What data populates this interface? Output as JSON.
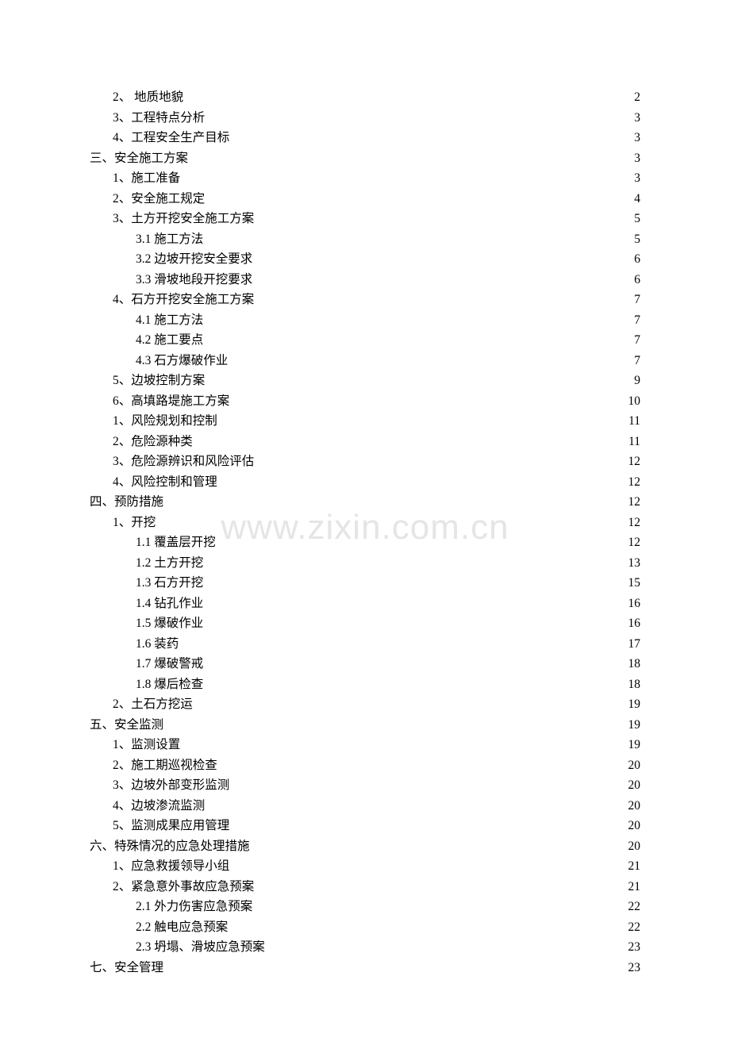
{
  "watermark": "www.zixin.com.cn",
  "colors": {
    "text": "#000000",
    "background": "#ffffff",
    "watermark": "#e5e5e5"
  },
  "typography": {
    "font_family": "SimSun",
    "font_size_pt": 12,
    "line_height": 25.5
  },
  "toc": [
    {
      "label": "2、   地质地貌",
      "page": "2",
      "indent": 1
    },
    {
      "label": "3、工程特点分析",
      "page": "3",
      "indent": 1
    },
    {
      "label": "4、工程安全生产目标",
      "page": "3",
      "indent": 1
    },
    {
      "label": "三、安全施工方案",
      "page": "3",
      "indent": 0
    },
    {
      "label": "1、施工准备",
      "page": "3",
      "indent": 1
    },
    {
      "label": "2、安全施工规定",
      "page": "4",
      "indent": 1
    },
    {
      "label": "3、土方开挖安全施工方案",
      "page": "5",
      "indent": 1
    },
    {
      "label": "3.1 施工方法",
      "page": "5",
      "indent": 2
    },
    {
      "label": "3.2 边坡开挖安全要求",
      "page": "6",
      "indent": 2
    },
    {
      "label": "3.3 滑坡地段开挖要求",
      "page": "6",
      "indent": 2
    },
    {
      "label": "4、石方开挖安全施工方案",
      "page": "7",
      "indent": 1
    },
    {
      "label": "4.1 施工方法",
      "page": "7",
      "indent": 2
    },
    {
      "label": "4.2 施工要点",
      "page": "7",
      "indent": 2
    },
    {
      "label": "4.3 石方爆破作业",
      "page": "7",
      "indent": 2
    },
    {
      "label": "5、边坡控制方案",
      "page": "9",
      "indent": 1
    },
    {
      "label": "6、高填路堤施工方案",
      "page": "10",
      "indent": 1
    },
    {
      "label": "1、风险规划和控制",
      "page": "11",
      "indent": 1
    },
    {
      "label": "2、危险源种类",
      "page": "11",
      "indent": 1
    },
    {
      "label": "3、危险源辨识和风险评估",
      "page": "12",
      "indent": 1
    },
    {
      "label": "4、风险控制和管理",
      "page": "12",
      "indent": 1
    },
    {
      "label": "四、预防措施",
      "page": "12",
      "indent": 0
    },
    {
      "label": "1、开挖",
      "page": "12",
      "indent": 1
    },
    {
      "label": "1.1 覆盖层开挖",
      "page": "12",
      "indent": 2
    },
    {
      "label": "1.2 土方开挖",
      "page": "13",
      "indent": 2
    },
    {
      "label": "1.3 石方开挖",
      "page": "15",
      "indent": 2
    },
    {
      "label": "1.4 钻孔作业",
      "page": "16",
      "indent": 2
    },
    {
      "label": "1.5 爆破作业",
      "page": "16",
      "indent": 2
    },
    {
      "label": "1.6 装药",
      "page": "17",
      "indent": 2
    },
    {
      "label": "1.7 爆破警戒",
      "page": "18",
      "indent": 2
    },
    {
      "label": "1.8 爆后检查",
      "page": "18",
      "indent": 2
    },
    {
      "label": "2、土石方挖运",
      "page": "19",
      "indent": 1
    },
    {
      "label": "五、安全监测",
      "page": "19",
      "indent": 0
    },
    {
      "label": "1、监测设置",
      "page": "19",
      "indent": 1
    },
    {
      "label": "2、施工期巡视检查",
      "page": "20",
      "indent": 1
    },
    {
      "label": "3、边坡外部变形监测",
      "page": "20",
      "indent": 1
    },
    {
      "label": "4、边坡渗流监测",
      "page": "20",
      "indent": 1
    },
    {
      "label": "5、监测成果应用管理",
      "page": "20",
      "indent": 1
    },
    {
      "label": "六、特殊情况的应急处理措施",
      "page": "20",
      "indent": 0
    },
    {
      "label": "1、应急救援领导小组",
      "page": "21",
      "indent": 1
    },
    {
      "label": "2、紧急意外事故应急预案",
      "page": "21",
      "indent": 1
    },
    {
      "label": "2.1 外力伤害应急预案",
      "page": "22",
      "indent": 2
    },
    {
      "label": "2.2 触电应急预案",
      "page": "22",
      "indent": 2
    },
    {
      "label": "2.3 坍塌、滑坡应急预案",
      "page": "23",
      "indent": 2
    },
    {
      "label": "七、安全管理",
      "page": "23",
      "indent": 0
    }
  ]
}
